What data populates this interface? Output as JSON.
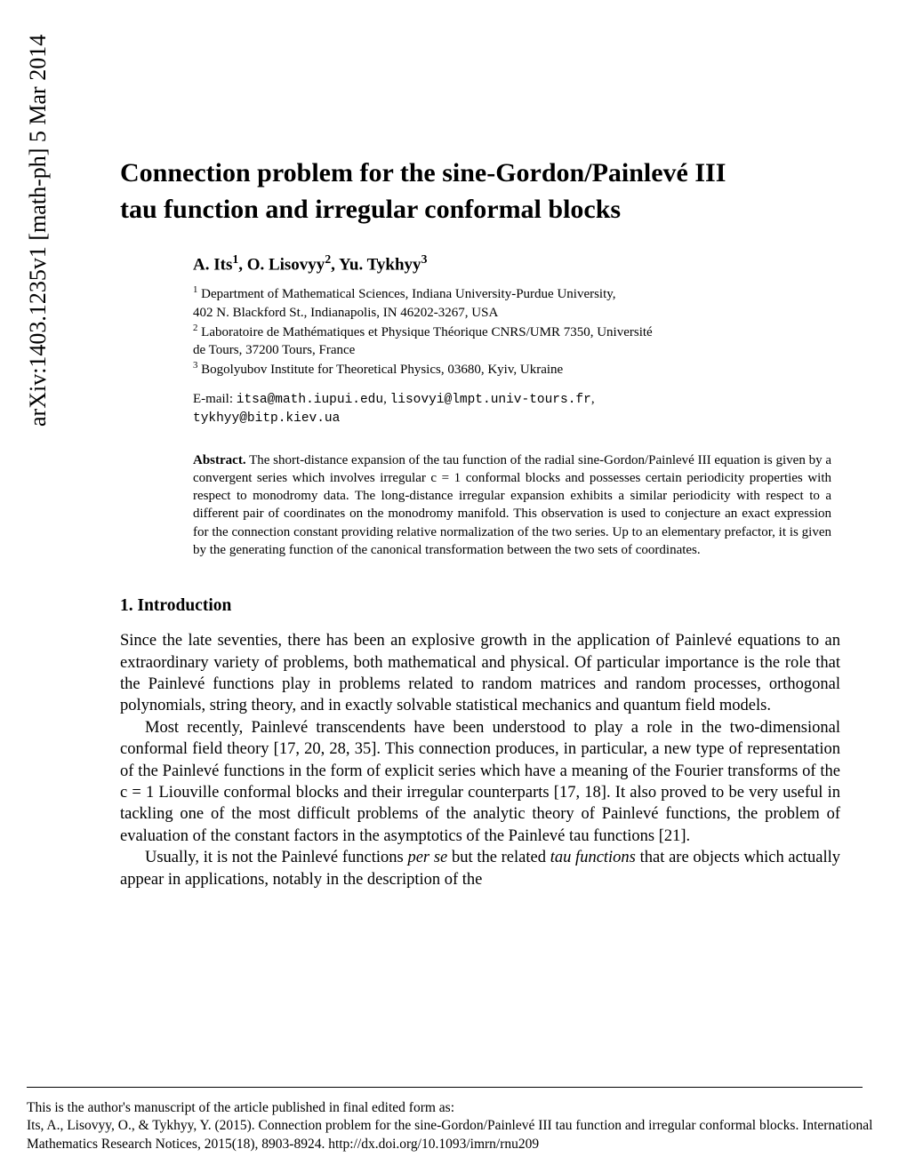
{
  "arxiv": {
    "label": "arXiv:1403.1235v1  [math-ph]  5 Mar 2014"
  },
  "title": {
    "line1": "Connection problem for the sine-Gordon/Painlevé III",
    "line2": "tau function and irregular conformal blocks"
  },
  "authors": {
    "a1_name": "A. Its",
    "a1_sup": "1",
    "sep1": ", ",
    "a2_name": "O. Lisovyy",
    "a2_sup": "2",
    "sep2": ", ",
    "a3_name": "Yu. Tykhyy",
    "a3_sup": "3"
  },
  "affiliations": {
    "aff1_sup": "1",
    "aff1_line1": " Department of Mathematical Sciences, Indiana University-Purdue University,",
    "aff1_line2": "402 N. Blackford St., Indianapolis, IN 46202-3267, USA",
    "aff2_sup": "2",
    "aff2_line1": " Laboratoire de Mathématiques et Physique Théorique CNRS/UMR 7350, Université",
    "aff2_line2": "de Tours, 37200 Tours, France",
    "aff3_sup": "3",
    "aff3_text": " Bogolyubov Institute for Theoretical Physics, 03680, Kyiv, Ukraine"
  },
  "emails": {
    "prefix": "E-mail: ",
    "e1": "itsa@math.iupui.edu",
    "sep1": ", ",
    "e2": "lisovyi@lmpt.univ-tours.fr",
    "sep2": ",",
    "e3": "tykhyy@bitp.kiev.ua"
  },
  "abstract": {
    "label": "Abstract.",
    "text": "  The short-distance expansion of the tau function of the radial sine-Gordon/Painlevé III equation is given by a convergent series which involves irregular c = 1 conformal blocks and possesses certain periodicity properties with respect to monodromy data. The long-distance irregular expansion exhibits a similar periodicity with respect to a different pair of coordinates on the monodromy manifold. This observation is used to conjecture an exact expression for the connection constant providing relative normalization of the two series. Up to an elementary prefactor, it is given by the generating function of the canonical transformation between the two sets of coordinates."
  },
  "section": {
    "heading": "1. Introduction"
  },
  "body": {
    "p1": "Since the late seventies, there has been an explosive growth in the application of Painlevé equations to an extraordinary variety of problems, both mathematical and physical. Of particular importance is the role that the Painlevé functions play in problems related to random matrices and random processes, orthogonal polynomials, string theory, and in exactly solvable statistical mechanics and quantum field models.",
    "p2": "Most recently, Painlevé transcendents have been understood to play a role in the two-dimensional conformal field theory [17, 20, 28, 35]. This connection produces, in particular, a new type of representation of the Painlevé functions in the form of explicit series which have a meaning of the Fourier transforms of the c = 1 Liouville conformal blocks and their irregular counterparts [17, 18]. It also proved to be very useful in tackling one of the most difficult problems of the analytic theory of Painlevé functions, the problem of evaluation of the constant factors in the asymptotics of the Painlevé tau functions [21].",
    "p3a": "Usually, it is not the Painlevé functions ",
    "p3_i1": "per se",
    "p3b": " but the related ",
    "p3_i2": "tau functions",
    "p3c": " that are objects which actually appear in applications, notably in the description of the"
  },
  "footer": {
    "line1": "This is the author's manuscript of the article published in final edited form as:",
    "line2": "Its, A., Lisovyy, O., & Tykhyy, Y. (2015). Connection problem for the sine-Gordon/Painlevé III tau function and irregular conformal blocks. International Mathematics Research Notices, 2015(18), 8903-8924.  http://dx.doi.org/10.1093/imrn/rnu209"
  }
}
